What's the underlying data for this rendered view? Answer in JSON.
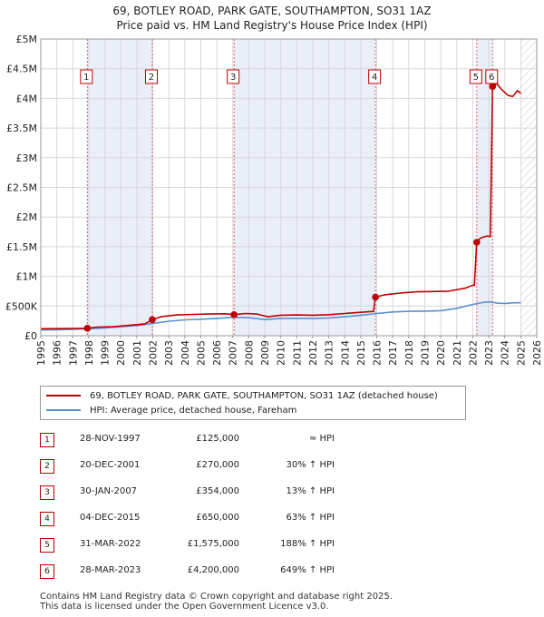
{
  "title": {
    "line1": "69, BOTLEY ROAD, PARK GATE, SOUTHAMPTON, SO31 1AZ",
    "line2": "Price paid vs. HM Land Registry's House Price Index (HPI)"
  },
  "colors": {
    "price_line": "#c00000",
    "hpi_line": "#5b8fd0",
    "shade": "#e9eef9",
    "marker_box_border": "#c00000",
    "vline": "#e06060"
  },
  "chart_data": {
    "type": "line",
    "xlim": [
      1995,
      2026
    ],
    "ylim": [
      0,
      5000000
    ],
    "xticks": [
      "1995",
      "1996",
      "1997",
      "1998",
      "1999",
      "2000",
      "2001",
      "2002",
      "2003",
      "2004",
      "2005",
      "2006",
      "2007",
      "2008",
      "2009",
      "2010",
      "2011",
      "2012",
      "2013",
      "2014",
      "2015",
      "2016",
      "2017",
      "2018",
      "2019",
      "2020",
      "2021",
      "2022",
      "2023",
      "2024",
      "2025",
      "2026"
    ],
    "yticks": [
      {
        "value": 0,
        "label": "£0"
      },
      {
        "value": 500000,
        "label": "£500K"
      },
      {
        "value": 1000000,
        "label": "£1M"
      },
      {
        "value": 1500000,
        "label": "£1.5M"
      },
      {
        "value": 2000000,
        "label": "£2M"
      },
      {
        "value": 2500000,
        "label": "£2.5M"
      },
      {
        "value": 3000000,
        "label": "£3M"
      },
      {
        "value": 3500000,
        "label": "£3.5M"
      },
      {
        "value": 4000000,
        "label": "£4M"
      },
      {
        "value": 4500000,
        "label": "£4.5M"
      },
      {
        "value": 5000000,
        "label": "£5M"
      }
    ],
    "grid": true,
    "shaded_periods": [
      [
        1997.91,
        2001.97
      ],
      [
        2007.08,
        2015.92
      ],
      [
        2022.25,
        2023.24
      ]
    ],
    "future_hatch_from": 2025.0,
    "series": [
      {
        "name": "69, BOTLEY ROAD, PARK GATE, SOUTHAMPTON, SO31 1AZ (detached house)",
        "color": "#c00000",
        "points": [
          [
            1995.0,
            118000
          ],
          [
            1996.0,
            119000
          ],
          [
            1997.0,
            121000
          ],
          [
            1997.91,
            125000
          ],
          [
            1998.5,
            145000
          ],
          [
            1999.5,
            152000
          ],
          [
            2000.5,
            175000
          ],
          [
            2001.5,
            200000
          ],
          [
            2001.97,
            270000
          ],
          [
            2002.5,
            320000
          ],
          [
            2003.5,
            350000
          ],
          [
            2004.5,
            360000
          ],
          [
            2005.5,
            365000
          ],
          [
            2006.5,
            370000
          ],
          [
            2007.08,
            354000
          ],
          [
            2007.8,
            375000
          ],
          [
            2008.5,
            365000
          ],
          [
            2009.2,
            320000
          ],
          [
            2010.0,
            345000
          ],
          [
            2011.0,
            350000
          ],
          [
            2012.0,
            345000
          ],
          [
            2013.0,
            355000
          ],
          [
            2014.0,
            375000
          ],
          [
            2015.0,
            395000
          ],
          [
            2015.8,
            410000
          ],
          [
            2015.92,
            650000
          ],
          [
            2016.5,
            690000
          ],
          [
            2017.5,
            720000
          ],
          [
            2018.5,
            740000
          ],
          [
            2019.5,
            745000
          ],
          [
            2020.5,
            750000
          ],
          [
            2021.5,
            800000
          ],
          [
            2022.0,
            850000
          ],
          [
            2022.1,
            850000
          ],
          [
            2022.25,
            1575000
          ],
          [
            2022.5,
            1650000
          ],
          [
            2022.9,
            1680000
          ],
          [
            2023.1,
            1670000
          ],
          [
            2023.24,
            4200000
          ],
          [
            2023.5,
            4250000
          ],
          [
            2023.8,
            4150000
          ],
          [
            2024.2,
            4050000
          ],
          [
            2024.5,
            4030000
          ],
          [
            2024.8,
            4130000
          ],
          [
            2025.0,
            4080000
          ]
        ]
      },
      {
        "name": "HPI: Average price, detached house, Fareham",
        "color": "#5b8fd0",
        "points": [
          [
            1995.0,
            98000
          ],
          [
            1996.0,
            101000
          ],
          [
            1997.0,
            108000
          ],
          [
            1998.0,
            118000
          ],
          [
            1999.0,
            132000
          ],
          [
            2000.0,
            152000
          ],
          [
            2001.0,
            172000
          ],
          [
            2002.0,
            208000
          ],
          [
            2003.0,
            245000
          ],
          [
            2004.0,
            268000
          ],
          [
            2005.0,
            278000
          ],
          [
            2006.0,
            292000
          ],
          [
            2007.0,
            310000
          ],
          [
            2008.0,
            305000
          ],
          [
            2009.0,
            272000
          ],
          [
            2010.0,
            292000
          ],
          [
            2011.0,
            292000
          ],
          [
            2012.0,
            292000
          ],
          [
            2013.0,
            300000
          ],
          [
            2014.0,
            320000
          ],
          [
            2015.0,
            345000
          ],
          [
            2016.0,
            375000
          ],
          [
            2017.0,
            400000
          ],
          [
            2018.0,
            412000
          ],
          [
            2019.0,
            415000
          ],
          [
            2020.0,
            422000
          ],
          [
            2021.0,
            462000
          ],
          [
            2022.0,
            528000
          ],
          [
            2022.6,
            560000
          ],
          [
            2023.0,
            570000
          ],
          [
            2023.6,
            548000
          ],
          [
            2024.0,
            545000
          ],
          [
            2024.6,
            555000
          ],
          [
            2025.0,
            555000
          ]
        ]
      }
    ],
    "transactions": [
      {
        "label": "1",
        "x": 1997.91,
        "y": 125000
      },
      {
        "label": "2",
        "x": 2001.97,
        "y": 270000
      },
      {
        "label": "3",
        "x": 2007.08,
        "y": 354000
      },
      {
        "label": "4",
        "x": 2015.92,
        "y": 650000
      },
      {
        "label": "5",
        "x": 2022.25,
        "y": 1575000
      },
      {
        "label": "6",
        "x": 2023.24,
        "y": 4200000
      }
    ]
  },
  "legend": {
    "items": [
      {
        "label": "69, BOTLEY ROAD, PARK GATE, SOUTHAMPTON, SO31 1AZ (detached house)"
      },
      {
        "label": "HPI: Average price, detached house, Fareham"
      }
    ]
  },
  "table": {
    "rows": [
      {
        "num": "1",
        "date": "28-NOV-1997",
        "price": "£125,000",
        "hpi": "≈ HPI"
      },
      {
        "num": "2",
        "date": "20-DEC-2001",
        "price": "£270,000",
        "hpi": "30% ↑ HPI"
      },
      {
        "num": "3",
        "date": "30-JAN-2007",
        "price": "£354,000",
        "hpi": "13% ↑ HPI"
      },
      {
        "num": "4",
        "date": "04-DEC-2015",
        "price": "£650,000",
        "hpi": "63% ↑ HPI"
      },
      {
        "num": "5",
        "date": "31-MAR-2022",
        "price": "£1,575,000",
        "hpi": "188% ↑ HPI"
      },
      {
        "num": "6",
        "date": "28-MAR-2023",
        "price": "£4,200,000",
        "hpi": "649% ↑ HPI"
      }
    ]
  },
  "footer": {
    "line1": "Contains HM Land Registry data © Crown copyright and database right 2025.",
    "line2": "This data is licensed under the Open Government Licence v3.0."
  }
}
